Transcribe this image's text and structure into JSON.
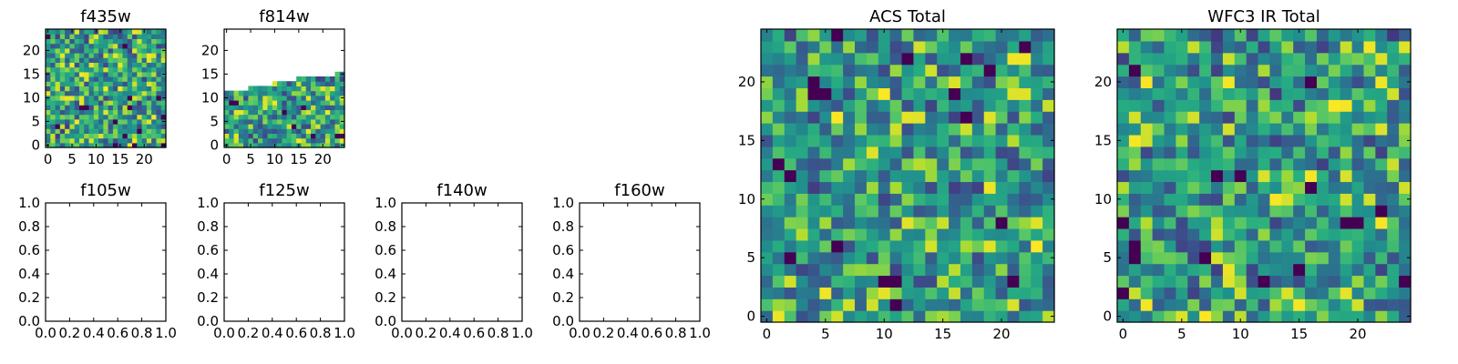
{
  "chart_data": [
    {
      "type": "heatmap",
      "title": "f435w",
      "xticks": [
        "0",
        "5",
        "10",
        "15",
        "20"
      ],
      "yticks": [
        "0",
        "5",
        "10",
        "15",
        "20"
      ],
      "xlim": [
        -0.5,
        24.5
      ],
      "ylim": [
        -0.5,
        24.5
      ],
      "grid_size": 25,
      "coverage": "full",
      "colormap": "viridis"
    },
    {
      "type": "heatmap",
      "title": "f814w",
      "xticks": [
        "0",
        "5",
        "10",
        "15",
        "20"
      ],
      "yticks": [
        "0",
        "5",
        "10",
        "15",
        "20"
      ],
      "xlim": [
        -0.5,
        24.5
      ],
      "ylim": [
        -0.5,
        24.5
      ],
      "grid_size": 25,
      "coverage": "lower portion only (top edge ~y=11 at left rising to ~y=15 at right)",
      "colormap": "viridis"
    },
    {
      "type": "heatmap",
      "title": "f105w",
      "xticks": [
        "0.0",
        "0.2",
        "0.4",
        "0.6",
        "0.8",
        "1.0"
      ],
      "yticks": [
        "0.0",
        "0.2",
        "0.4",
        "0.6",
        "0.8",
        "1.0"
      ],
      "xlim": [
        0,
        1
      ],
      "ylim": [
        0,
        1
      ],
      "empty": true
    },
    {
      "type": "heatmap",
      "title": "f125w",
      "xticks": [
        "0.0",
        "0.2",
        "0.4",
        "0.6",
        "0.8",
        "1.0"
      ],
      "yticks": [
        "0.0",
        "0.2",
        "0.4",
        "0.6",
        "0.8",
        "1.0"
      ],
      "xlim": [
        0,
        1
      ],
      "ylim": [
        0,
        1
      ],
      "empty": true
    },
    {
      "type": "heatmap",
      "title": "f140w",
      "xticks": [
        "0.0",
        "0.2",
        "0.4",
        "0.6",
        "0.8",
        "1.0"
      ],
      "yticks": [
        "0.0",
        "0.2",
        "0.4",
        "0.6",
        "0.8",
        "1.0"
      ],
      "xlim": [
        0,
        1
      ],
      "ylim": [
        0,
        1
      ],
      "empty": true
    },
    {
      "type": "heatmap",
      "title": "f160w",
      "xticks": [
        "0.0",
        "0.2",
        "0.4",
        "0.6",
        "0.8",
        "1.0"
      ],
      "yticks": [
        "0.0",
        "0.2",
        "0.4",
        "0.6",
        "0.8",
        "1.0"
      ],
      "xlim": [
        0,
        1
      ],
      "ylim": [
        0,
        1
      ],
      "empty": true
    },
    {
      "type": "heatmap",
      "title": "ACS Total",
      "xticks": [
        "0",
        "5",
        "10",
        "15",
        "20"
      ],
      "yticks": [
        "0",
        "5",
        "10",
        "15",
        "20"
      ],
      "xlim": [
        -0.5,
        24.5
      ],
      "ylim": [
        -0.5,
        24.5
      ],
      "grid_size": 25,
      "coverage": "full",
      "colormap": "viridis"
    },
    {
      "type": "heatmap",
      "title": "WFC3 IR Total",
      "xticks": [
        "0",
        "5",
        "10",
        "15",
        "20"
      ],
      "yticks": [
        "0",
        "5",
        "10",
        "15",
        "20"
      ],
      "xlim": [
        -0.5,
        24.5
      ],
      "ylim": [
        -0.5,
        24.5
      ],
      "grid_size": 25,
      "coverage": "full",
      "colormap": "viridis"
    }
  ]
}
